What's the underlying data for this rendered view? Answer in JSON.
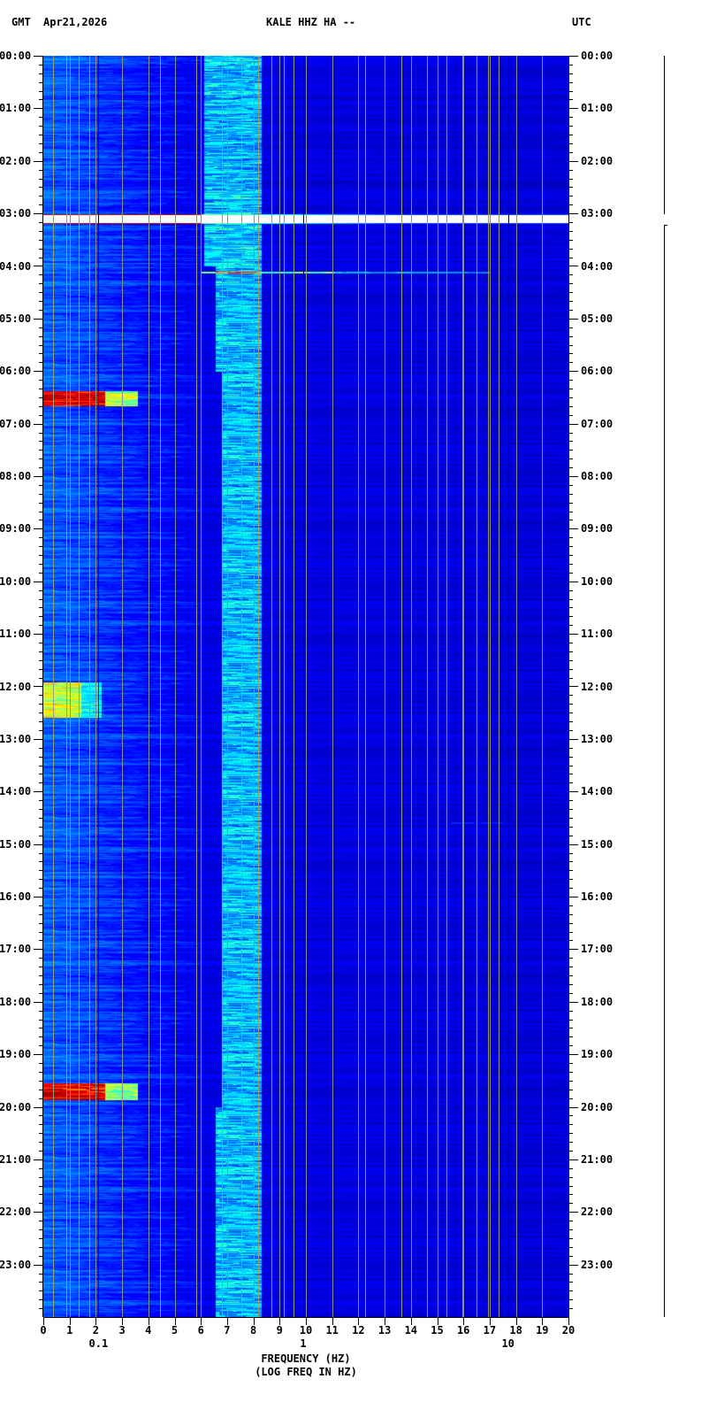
{
  "header": {
    "left_tz": "GMT",
    "date": "Apr21,2026",
    "station": "KALE HHZ HA --",
    "right_tz": "UTC"
  },
  "chart_data": {
    "type": "heatmap",
    "title": "KALE HHZ HA --",
    "xlabel": "FREQUENCY (HZ)",
    "xlabel_log": "(LOG FREQ IN HZ)",
    "xlim": [
      0,
      20
    ],
    "x_ticks": [
      "0",
      "1",
      "2",
      "3",
      "4",
      "5",
      "6",
      "7",
      "8",
      "9",
      "10",
      "11",
      "12",
      "13",
      "14",
      "15",
      "16",
      "17",
      "18",
      "19",
      "20"
    ],
    "x_log_ticks": [
      {
        "label": "0.1",
        "freq_hz": 0.1
      },
      {
        "label": "1",
        "freq_hz": 1
      },
      {
        "label": "10",
        "freq_hz": 10
      }
    ],
    "y_ticks": [
      "00:00",
      "01:00",
      "02:00",
      "03:00",
      "04:00",
      "05:00",
      "06:00",
      "07:00",
      "08:00",
      "09:00",
      "10:00",
      "11:00",
      "12:00",
      "13:00",
      "14:00",
      "15:00",
      "16:00",
      "17:00",
      "18:00",
      "19:00",
      "20:00",
      "21:00",
      "22:00",
      "23:00"
    ],
    "ylim_hours": [
      0,
      24
    ],
    "y_minor_tick_minutes": 10,
    "colormap": [
      "#00007a",
      "#0000ff",
      "#00ffff",
      "#ffff00",
      "#ff0000",
      "#800000"
    ],
    "background_level_color": "#0a14b4",
    "persistent_band_hz": [
      6.3,
      8.3
    ],
    "data_gap": {
      "start": "03:00",
      "end": "03:12"
    },
    "events": [
      {
        "time": "04:06",
        "freq_hz": [
          6,
          17
        ],
        "intensity": "medium"
      },
      {
        "time_start": "06:22",
        "time_end": "06:40",
        "freq_hz": [
          0,
          3.6
        ],
        "intensity": "high"
      },
      {
        "time_start": "11:55",
        "time_end": "12:35",
        "freq_hz": [
          0,
          2.2
        ],
        "intensity": "medium"
      },
      {
        "time": "14:35",
        "freq_hz": [
          15.5,
          17.5
        ],
        "intensity": "low"
      },
      {
        "time_start": "19:33",
        "time_end": "19:52",
        "freq_hz": [
          0,
          3.6
        ],
        "intensity": "high"
      }
    ]
  }
}
